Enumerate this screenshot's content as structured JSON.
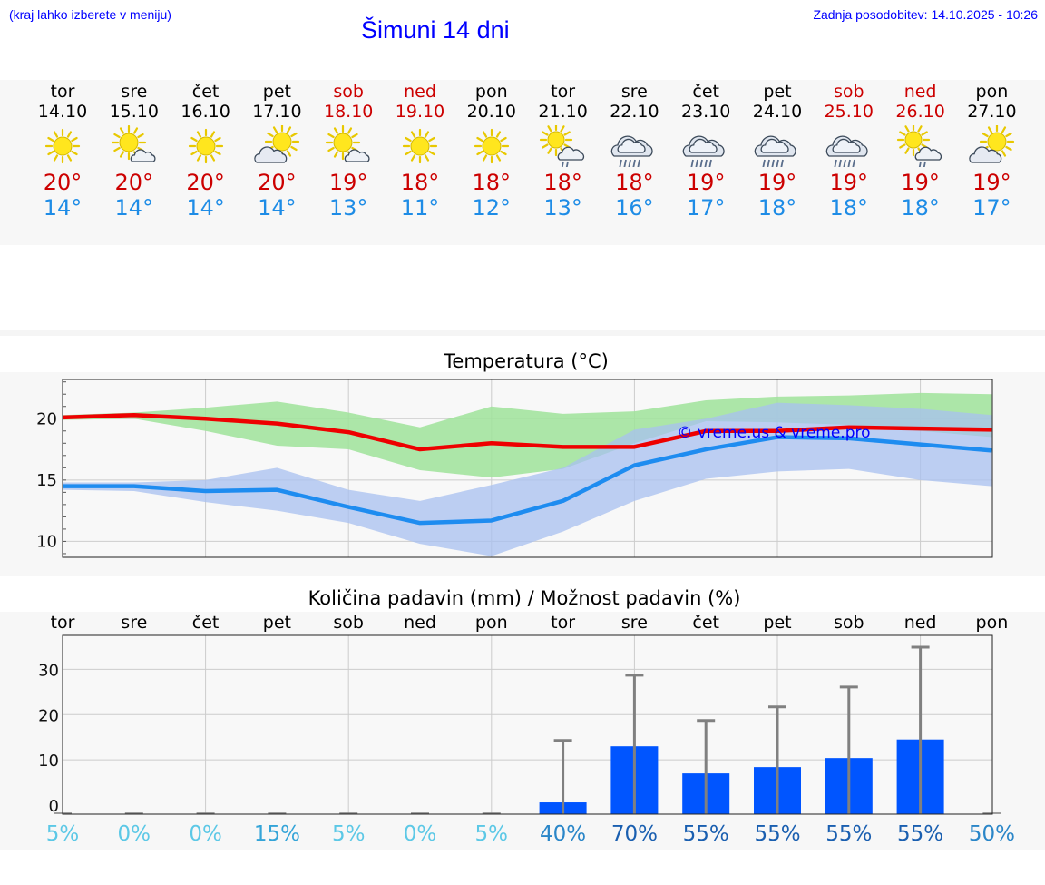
{
  "header": {
    "hint": "(kraj lahko izberete v meniju)",
    "title": "Šimuni 14 dni",
    "updated": "Zadnja posodobitev: 14.10.2025 - 10:26"
  },
  "days": [
    {
      "name": "tor",
      "date": "14.10",
      "weekend": false,
      "icon": "sun-icon",
      "tmax": "20°",
      "tmin": "14°"
    },
    {
      "name": "sre",
      "date": "15.10",
      "weekend": false,
      "icon": "sun-cloud-icon",
      "tmax": "20°",
      "tmin": "14°"
    },
    {
      "name": "čet",
      "date": "16.10",
      "weekend": false,
      "icon": "sun-icon",
      "tmax": "20°",
      "tmin": "14°"
    },
    {
      "name": "pet",
      "date": "17.10",
      "weekend": false,
      "icon": "cloud-sun-icon",
      "tmax": "20°",
      "tmin": "14°"
    },
    {
      "name": "sob",
      "date": "18.10",
      "weekend": true,
      "icon": "sun-cloud-icon",
      "tmax": "19°",
      "tmin": "13°"
    },
    {
      "name": "ned",
      "date": "19.10",
      "weekend": true,
      "icon": "sun-icon",
      "tmax": "18°",
      "tmin": "11°"
    },
    {
      "name": "pon",
      "date": "20.10",
      "weekend": false,
      "icon": "sun-icon",
      "tmax": "18°",
      "tmin": "12°"
    },
    {
      "name": "tor",
      "date": "21.10",
      "weekend": false,
      "icon": "sun-rain-icon",
      "tmax": "18°",
      "tmin": "13°"
    },
    {
      "name": "sre",
      "date": "22.10",
      "weekend": false,
      "icon": "rain-cloud-icon",
      "tmax": "18°",
      "tmin": "16°"
    },
    {
      "name": "čet",
      "date": "23.10",
      "weekend": false,
      "icon": "rain-cloud-icon",
      "tmax": "19°",
      "tmin": "17°"
    },
    {
      "name": "pet",
      "date": "24.10",
      "weekend": false,
      "icon": "rain-cloud-icon",
      "tmax": "19°",
      "tmin": "18°"
    },
    {
      "name": "sob",
      "date": "25.10",
      "weekend": true,
      "icon": "rain-cloud-icon",
      "tmax": "19°",
      "tmin": "18°"
    },
    {
      "name": "ned",
      "date": "26.10",
      "weekend": true,
      "icon": "sun-rain-icon",
      "tmax": "19°",
      "tmin": "18°"
    },
    {
      "name": "pon",
      "date": "27.10",
      "weekend": false,
      "icon": "cloud-sun-icon",
      "tmax": "19°",
      "tmin": "17°"
    }
  ],
  "colors": {
    "max": "#ee0000",
    "min": "#1e8cf0",
    "max_band": "#9fe39a",
    "min_band": "#a8c0f0",
    "bar": "#0055ff",
    "whisker": "#808080",
    "weekend": "#cc0000",
    "link": "#0000ff"
  },
  "chart_data": [
    {
      "type": "line",
      "title": "Temperatura (°C)",
      "watermark": "© vreme.us & vreme.pro",
      "categories": [
        "14.10",
        "15.10",
        "16.10",
        "17.10",
        "18.10",
        "19.10",
        "20.10",
        "21.10",
        "22.10",
        "23.10",
        "24.10",
        "25.10",
        "26.10",
        "27.10"
      ],
      "yticks": [
        10,
        15,
        20
      ],
      "ylim": [
        8.7,
        23.2
      ],
      "series": [
        {
          "name": "max",
          "values": [
            20.1,
            20.3,
            20.0,
            19.6,
            18.9,
            17.5,
            18.0,
            17.7,
            17.7,
            19.0,
            19.0,
            19.3,
            19.2,
            19.1
          ],
          "band_low": [
            19.9,
            20.0,
            19.0,
            17.8,
            17.5,
            15.8,
            15.2,
            15.9,
            18.0,
            19.8,
            19.7,
            19.5,
            19.0,
            18.5
          ],
          "band_high": [
            20.3,
            20.5,
            20.9,
            21.4,
            20.5,
            19.3,
            21.0,
            20.4,
            20.6,
            21.5,
            21.8,
            21.9,
            22.1,
            22.0
          ]
        },
        {
          "name": "min",
          "values": [
            14.5,
            14.5,
            14.1,
            14.2,
            12.8,
            11.5,
            11.7,
            13.3,
            16.2,
            17.5,
            18.5,
            18.4,
            17.9,
            17.4
          ],
          "band_low": [
            14.2,
            14.1,
            13.2,
            12.5,
            11.5,
            9.8,
            8.8,
            10.8,
            13.3,
            15.1,
            15.7,
            15.9,
            15.0,
            14.5
          ],
          "band_high": [
            14.8,
            14.8,
            15.0,
            16.0,
            14.2,
            13.3,
            14.6,
            16.0,
            19.1,
            20.0,
            21.3,
            21.1,
            20.8,
            20.3
          ]
        }
      ]
    },
    {
      "type": "bar",
      "title": "Količina padavin (mm) / Možnost padavin (%)",
      "categories": [
        "tor",
        "sre",
        "čet",
        "pet",
        "sob",
        "ned",
        "pon",
        "tor",
        "sre",
        "čet",
        "pet",
        "sob",
        "ned",
        "pon"
      ],
      "yticks": [
        0,
        10,
        20,
        30
      ],
      "ylim": [
        -2,
        37.5
      ],
      "values": [
        0,
        0,
        0,
        0,
        0,
        0,
        0,
        0.6,
        13,
        7,
        8.4,
        10.4,
        14.5,
        0
      ],
      "whisker_max": [
        0,
        0,
        0,
        0,
        0,
        0,
        0,
        14.3,
        28.7,
        18.7,
        21.7,
        26.1,
        34.9,
        0
      ],
      "probability": [
        "5%",
        "0%",
        "0%",
        "15%",
        "5%",
        "0%",
        "5%",
        "40%",
        "70%",
        "55%",
        "55%",
        "55%",
        "55%",
        "50%"
      ]
    }
  ]
}
